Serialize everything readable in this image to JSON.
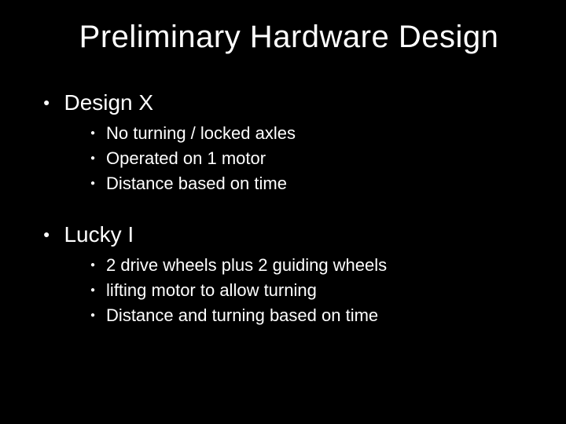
{
  "slide": {
    "title": "Preliminary Hardware Design",
    "title_color": "#ffffff",
    "title_fontsize": 40,
    "background_color": "#000000",
    "text_color": "#ffffff",
    "bullet_color": "#ffffff",
    "sections": [
      {
        "heading": "Design X",
        "heading_fontsize": 28,
        "items": [
          "No turning / locked axles",
          "Operated on 1 motor",
          "Distance based on time"
        ],
        "item_fontsize": 22
      },
      {
        "heading": "Lucky I",
        "heading_fontsize": 28,
        "items": [
          "2 drive wheels plus 2 guiding wheels",
          "lifting motor to allow turning",
          "Distance and turning based on time"
        ],
        "item_fontsize": 22
      }
    ]
  }
}
